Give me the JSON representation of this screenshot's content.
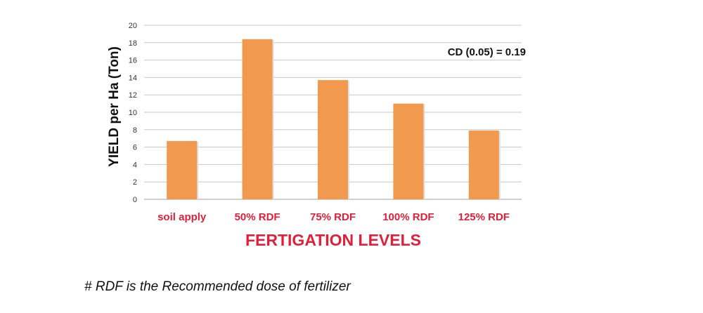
{
  "chart_data": {
    "type": "bar",
    "categories": [
      "soil apply",
      "50% RDF",
      "75% RDF",
      "100% RDF",
      "125% RDF"
    ],
    "values": [
      6.7,
      18.4,
      13.7,
      11.0,
      7.9
    ],
    "title": "",
    "xlabel": "FERTIGATION LEVELS",
    "ylabel": "YIELD per Ha (Ton)",
    "ylim": [
      0,
      20
    ],
    "yticks": [
      0,
      2,
      4,
      6,
      8,
      10,
      12,
      14,
      16,
      18,
      20
    ],
    "grid": true,
    "annotation": "CD (0.05) = 0.19",
    "colors": {
      "bar": "#f0994f",
      "bar_edge": "#e0e0e0",
      "grid": "#c8c8c8",
      "label": "#e0203a"
    }
  },
  "footnote": "# RDF is the Recommended dose of fertilizer"
}
